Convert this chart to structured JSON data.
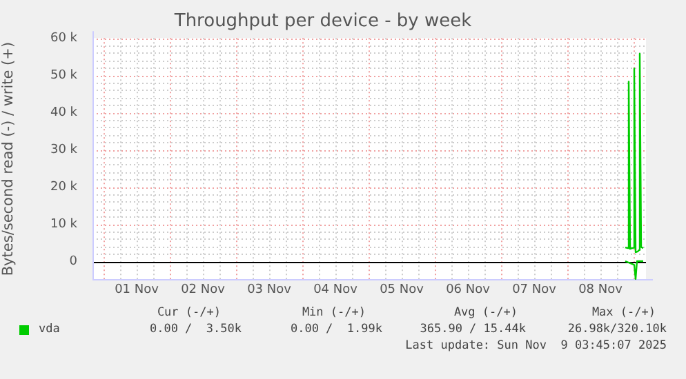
{
  "chart_data": {
    "type": "line",
    "title": "Throughput per device - by week",
    "ylabel": "Bytes/second read (-) / write (+)",
    "xlim": [
      "2025-10-31T20:00",
      "2025-11-09T04:30"
    ],
    "xticks": [
      {
        "value": "2025-11-01T00:00",
        "label": null
      },
      {
        "value": "2025-11-01T06:00",
        "label": null
      },
      {
        "value": "2025-11-01T12:00",
        "label": "01 Nov"
      },
      {
        "value": "2025-11-01T18:00",
        "label": null
      },
      {
        "value": "2025-11-02T00:00",
        "label": null
      },
      {
        "value": "2025-11-02T06:00",
        "label": null
      },
      {
        "value": "2025-11-02T12:00",
        "label": "02 Nov"
      },
      {
        "value": "2025-11-02T18:00",
        "label": null
      },
      {
        "value": "2025-11-03T00:00",
        "label": null
      },
      {
        "value": "2025-11-03T06:00",
        "label": null
      },
      {
        "value": "2025-11-03T12:00",
        "label": "03 Nov"
      },
      {
        "value": "2025-11-03T18:00",
        "label": null
      },
      {
        "value": "2025-11-04T00:00",
        "label": null
      },
      {
        "value": "2025-11-04T06:00",
        "label": null
      },
      {
        "value": "2025-11-04T12:00",
        "label": "04 Nov"
      },
      {
        "value": "2025-11-04T18:00",
        "label": null
      },
      {
        "value": "2025-11-05T00:00",
        "label": null
      },
      {
        "value": "2025-11-05T06:00",
        "label": null
      },
      {
        "value": "2025-11-05T12:00",
        "label": "05 Nov"
      },
      {
        "value": "2025-11-05T18:00",
        "label": null
      },
      {
        "value": "2025-11-06T00:00",
        "label": null
      },
      {
        "value": "2025-11-06T06:00",
        "label": null
      },
      {
        "value": "2025-11-06T12:00",
        "label": "06 Nov"
      },
      {
        "value": "2025-11-06T18:00",
        "label": null
      },
      {
        "value": "2025-11-07T00:00",
        "label": null
      },
      {
        "value": "2025-11-07T06:00",
        "label": null
      },
      {
        "value": "2025-11-07T12:00",
        "label": "07 Nov"
      },
      {
        "value": "2025-11-07T18:00",
        "label": null
      },
      {
        "value": "2025-11-08T00:00",
        "label": null
      },
      {
        "value": "2025-11-08T06:00",
        "label": null
      },
      {
        "value": "2025-11-08T12:00",
        "label": "08 Nov"
      },
      {
        "value": "2025-11-08T18:00",
        "label": null
      },
      {
        "value": "2025-11-09T00:00",
        "label": null
      }
    ],
    "ylim": [
      -5000,
      60000
    ],
    "yticks": [
      {
        "value": 0,
        "label": "0"
      },
      {
        "value": 2000,
        "label": null
      },
      {
        "value": 4000,
        "label": null
      },
      {
        "value": 6000,
        "label": null
      },
      {
        "value": 8000,
        "label": null
      },
      {
        "value": 10000,
        "label": "10 k"
      },
      {
        "value": 12000,
        "label": null
      },
      {
        "value": 14000,
        "label": null
      },
      {
        "value": 16000,
        "label": null
      },
      {
        "value": 18000,
        "label": null
      },
      {
        "value": 20000,
        "label": "20 k"
      },
      {
        "value": 22000,
        "label": null
      },
      {
        "value": 24000,
        "label": null
      },
      {
        "value": 26000,
        "label": null
      },
      {
        "value": 28000,
        "label": null
      },
      {
        "value": 30000,
        "label": "30 k"
      },
      {
        "value": 32000,
        "label": null
      },
      {
        "value": 34000,
        "label": null
      },
      {
        "value": 36000,
        "label": null
      },
      {
        "value": 38000,
        "label": null
      },
      {
        "value": 40000,
        "label": "40 k"
      },
      {
        "value": 42000,
        "label": null
      },
      {
        "value": 44000,
        "label": null
      },
      {
        "value": 46000,
        "label": null
      },
      {
        "value": 48000,
        "label": null
      },
      {
        "value": 50000,
        "label": "50 k"
      },
      {
        "value": 52000,
        "label": null
      },
      {
        "value": 54000,
        "label": null
      },
      {
        "value": 56000,
        "label": null
      },
      {
        "value": 58000,
        "label": null
      },
      {
        "value": 60000,
        "label": "60 k"
      }
    ],
    "grid": true,
    "legend": "bottom left",
    "marker": "none",
    "line_style": "solid",
    "ref_lines": [
      {
        "axis": "y",
        "value": 0,
        "color": "#000000"
      }
    ],
    "series": [
      {
        "name": "vda",
        "color": "#00cc00",
        "x": [
          "2025-11-08T21:00",
          "2025-11-08T21:30",
          "2025-11-08T22:00",
          "2025-11-08T22:15",
          "2025-11-08T22:45",
          "2025-11-08T23:30",
          "2025-11-09T00:00",
          "2025-11-09T00:15",
          "2025-11-09T00:45",
          "2025-11-09T01:30",
          "2025-11-09T02:00",
          "2025-11-09T02:15",
          "2025-11-09T02:45",
          "2025-11-09T03:30"
        ],
        "values": [
          3700,
          3600,
          3500,
          48300,
          3300,
          3500,
          3600,
          51800,
          2400,
          2600,
          3000,
          55800,
          3800,
          3500
        ]
      },
      {
        "color": "#00cc00",
        "x": [
          "2025-11-08T21:00",
          "2025-11-09T00:15",
          "2025-11-09T00:45",
          "2025-11-09T01:15",
          "2025-11-09T03:30"
        ],
        "values": [
          0,
          -1000,
          -4800,
          0,
          0
        ]
      }
    ],
    "annotations": [
      "Cur (-/+)",
      "Min (-/+)",
      "Avg (-/+)",
      "Max (-/+)",
      "0.00 /  3.50k",
      "0.00 /  1.99k",
      "365.90 / 15.44k",
      "26.98k/320.10k",
      "Last update: Sun Nov  9 03:45:07 2025"
    ]
  }
}
